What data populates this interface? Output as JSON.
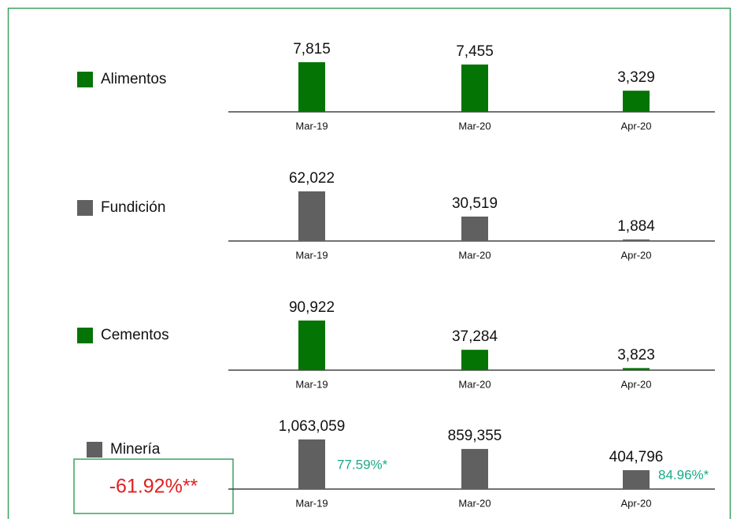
{
  "chart_data": [
    {
      "type": "bar",
      "categories": [
        "Mar-19",
        "Mar-20",
        "Apr-20"
      ],
      "series": [
        {
          "name": "Alimentos",
          "color": "#047404",
          "values": [
            7815,
            7455,
            3329
          ],
          "value_labels": [
            "7,815",
            "7,455",
            "3,329"
          ]
        }
      ]
    },
    {
      "type": "bar",
      "categories": [
        "Mar-19",
        "Mar-20",
        "Apr-20"
      ],
      "series": [
        {
          "name": "Fundición",
          "color": "#606060",
          "values": [
            62022,
            30519,
            1884
          ],
          "value_labels": [
            "62,022",
            "30,519",
            "1,884"
          ]
        }
      ]
    },
    {
      "type": "bar",
      "categories": [
        "Mar-19",
        "Mar-20",
        "Apr-20"
      ],
      "series": [
        {
          "name": "Cementos",
          "color": "#047404",
          "values": [
            90922,
            37284,
            3823
          ],
          "value_labels": [
            "90,922",
            "37,284",
            "3,823"
          ]
        }
      ]
    },
    {
      "type": "bar",
      "categories": [
        "Mar-19",
        "Mar-20",
        "Apr-20"
      ],
      "series": [
        {
          "name": "Minería",
          "color": "#606060",
          "values": [
            1063059,
            859355,
            404796
          ],
          "value_labels": [
            "1,063,059",
            "859,355",
            "404,796"
          ]
        }
      ],
      "annotations": [
        "77.59%*",
        "84.96%*",
        "-61.92%**"
      ]
    }
  ]
}
